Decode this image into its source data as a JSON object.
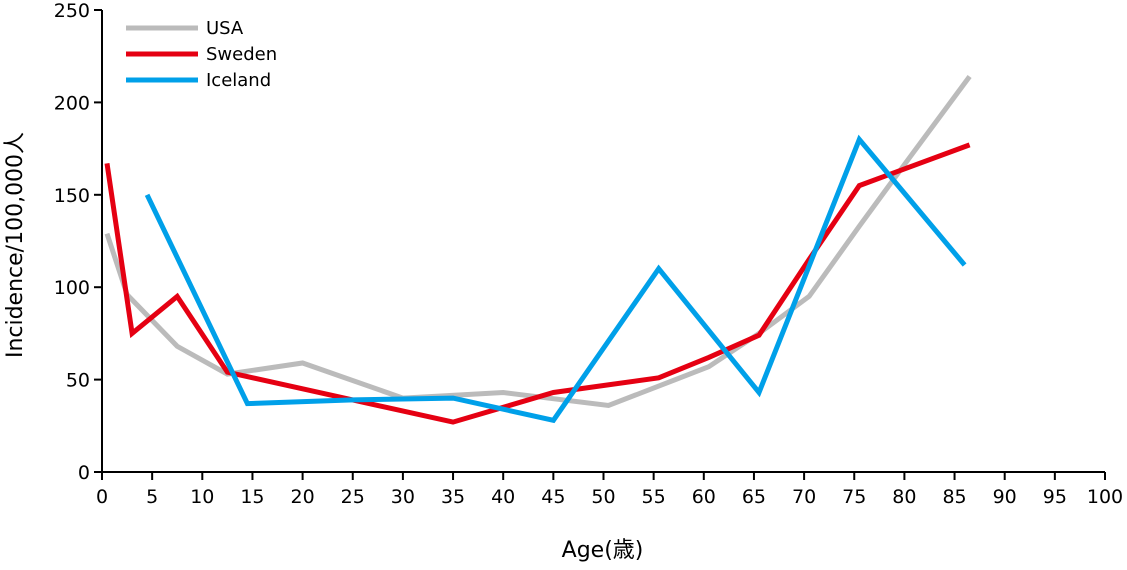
{
  "chart_data": {
    "type": "line",
    "xlabel": "Age(歳)",
    "ylabel": "Incidence/100,000人",
    "xlim": [
      0,
      100
    ],
    "ylim": [
      0,
      250
    ],
    "xticks": [
      0,
      5,
      10,
      15,
      20,
      25,
      30,
      35,
      40,
      45,
      50,
      55,
      60,
      65,
      70,
      75,
      80,
      85,
      90,
      95,
      100
    ],
    "yticks": [
      0,
      50,
      100,
      150,
      200,
      250
    ],
    "grid": false,
    "legend_position": "top-left",
    "series": [
      {
        "name": "USA",
        "color": "#bbbbbb",
        "points": [
          [
            0.5,
            129
          ],
          [
            2.5,
            96
          ],
          [
            7.5,
            68
          ],
          [
            12.5,
            53
          ],
          [
            20,
            59
          ],
          [
            30,
            40
          ],
          [
            40,
            43
          ],
          [
            50.5,
            36
          ],
          [
            60.5,
            57
          ],
          [
            65.5,
            75
          ],
          [
            70.5,
            95
          ],
          [
            75.5,
            133
          ],
          [
            80.5,
            170
          ],
          [
            86.5,
            214
          ]
        ]
      },
      {
        "name": "Sweden",
        "color": "#e50012",
        "points": [
          [
            0.5,
            167
          ],
          [
            3,
            75
          ],
          [
            7.5,
            95
          ],
          [
            12.5,
            54
          ],
          [
            20,
            45
          ],
          [
            35,
            27
          ],
          [
            45,
            43
          ],
          [
            55.5,
            51
          ],
          [
            60.5,
            62
          ],
          [
            65.5,
            74
          ],
          [
            70.5,
            115
          ],
          [
            75.5,
            155
          ],
          [
            86.5,
            177
          ]
        ]
      },
      {
        "name": "Iceland",
        "color": "#00a0e9",
        "points": [
          [
            4.5,
            150
          ],
          [
            14.5,
            37
          ],
          [
            25,
            39
          ],
          [
            35,
            40
          ],
          [
            45,
            28
          ],
          [
            55.5,
            110
          ],
          [
            65.5,
            43
          ],
          [
            75.5,
            180
          ],
          [
            86,
            112
          ]
        ]
      }
    ]
  }
}
